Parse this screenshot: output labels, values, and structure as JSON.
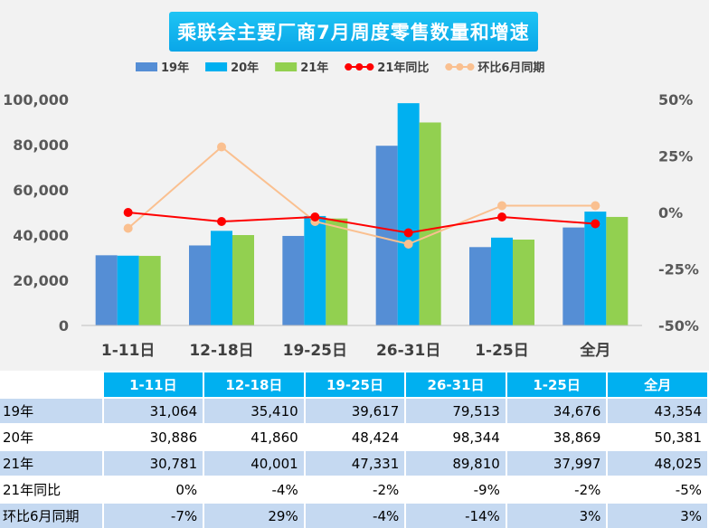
{
  "chart_data": {
    "type": "bar",
    "title": "乘联会主要厂商7月周度零售数量和增速",
    "categories": [
      "1-11日",
      "12-18日",
      "19-25日",
      "26-31日",
      "1-25日",
      "全月"
    ],
    "series": [
      {
        "name": "19年",
        "kind": "bar",
        "axis": "left",
        "color": "#558ed5",
        "values": [
          31064,
          35410,
          39617,
          79513,
          34676,
          43354
        ]
      },
      {
        "name": "20年",
        "kind": "bar",
        "axis": "left",
        "color": "#00b0f0",
        "values": [
          30886,
          41860,
          48424,
          98344,
          38869,
          50381
        ]
      },
      {
        "name": "21年",
        "kind": "bar",
        "axis": "left",
        "color": "#92d050",
        "values": [
          30781,
          40001,
          47331,
          89810,
          37997,
          48025
        ]
      },
      {
        "name": "21年同比",
        "kind": "line",
        "axis": "right",
        "color": "#ff0000",
        "values": [
          0,
          -4,
          -2,
          -9,
          -2,
          -5
        ]
      },
      {
        "name": "环比6月同期",
        "kind": "line",
        "axis": "right",
        "color": "#fac090",
        "values": [
          -7,
          29,
          -4,
          -14,
          3,
          3
        ]
      }
    ],
    "y_left": {
      "min": 0,
      "max": 100000,
      "ticks": [
        "0",
        "20,000",
        "40,000",
        "60,000",
        "80,000",
        "100,000"
      ]
    },
    "y_right": {
      "min": -50,
      "max": 50,
      "ticks": [
        "-50%",
        "-25%",
        "0%",
        "25%",
        "50%"
      ]
    },
    "legend_position": "top",
    "grid": false
  },
  "table": {
    "headers": [
      "1-11日",
      "12-18日",
      "19-25日",
      "26-31日",
      "1-25日",
      "全月"
    ],
    "rows": [
      {
        "label": "19年",
        "cells": [
          "31,064",
          "35,410",
          "39,617",
          "79,513",
          "34,676",
          "43,354"
        ]
      },
      {
        "label": "20年",
        "cells": [
          "30,886",
          "41,860",
          "48,424",
          "98,344",
          "38,869",
          "50,381"
        ]
      },
      {
        "label": "21年",
        "cells": [
          "30,781",
          "40,001",
          "47,331",
          "89,810",
          "37,997",
          "48,025"
        ]
      },
      {
        "label": "21年同比",
        "cells": [
          "0%",
          "-4%",
          "-2%",
          "-9%",
          "-2%",
          "-5%"
        ]
      },
      {
        "label": "环比6月同期",
        "cells": [
          "-7%",
          "29%",
          "-4%",
          "-14%",
          "3%",
          "3%"
        ]
      }
    ]
  }
}
